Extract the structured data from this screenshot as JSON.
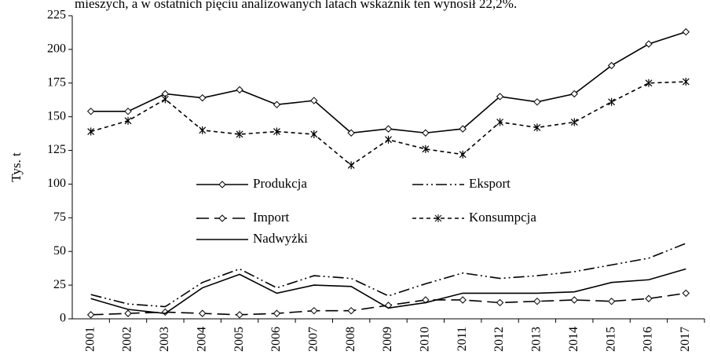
{
  "chart_data": {
    "type": "line",
    "annotation": "mieszych, a w ostatnich pięciu analizowanych latach wskaźnik ten wynosił 22,2%.",
    "ylabel": "Tys. t",
    "categories": [
      "2001",
      "2002",
      "2003",
      "2004",
      "2005",
      "2006",
      "2007",
      "2008",
      "2009",
      "2010",
      "2011",
      "2012",
      "2013",
      "2014",
      "2015",
      "2016",
      "2017"
    ],
    "ylim": [
      0,
      225
    ],
    "yticks": [
      0,
      25,
      50,
      75,
      100,
      125,
      150,
      175,
      200,
      225
    ],
    "series": [
      {
        "name": "Produkcja",
        "color": "#000000",
        "dash": "solid",
        "marker": "diamond",
        "values": [
          154,
          154,
          167,
          164,
          170,
          159,
          162,
          138,
          141,
          138,
          141,
          165,
          161,
          167,
          188,
          204,
          213
        ]
      },
      {
        "name": "Eksport",
        "color": "#000000",
        "dash": "dash-dot-dot",
        "marker": "none",
        "values": [
          18,
          11,
          9,
          27,
          37,
          23,
          32,
          30,
          17,
          26,
          34,
          30,
          32,
          35,
          40,
          45,
          56
        ]
      },
      {
        "name": "Import",
        "color": "#000000",
        "dash": "long-dash",
        "marker": "diamond",
        "values": [
          3,
          4,
          5,
          4,
          3,
          4,
          6,
          6,
          10,
          14,
          14,
          12,
          13,
          14,
          13,
          15,
          19
        ]
      },
      {
        "name": "Konsumpcja",
        "color": "#000000",
        "dash": "short-dash",
        "marker": "asterisk",
        "values": [
          139,
          147,
          163,
          140,
          137,
          139,
          137,
          114,
          133,
          126,
          122,
          146,
          142,
          146,
          161,
          175,
          176
        ]
      },
      {
        "name": "Nadwyżki",
        "color": "#000000",
        "dash": "solid",
        "marker": "none",
        "values": [
          15,
          7,
          4,
          23,
          33,
          19,
          25,
          24,
          8,
          12,
          19,
          19,
          19,
          20,
          27,
          29,
          37
        ]
      }
    ]
  }
}
